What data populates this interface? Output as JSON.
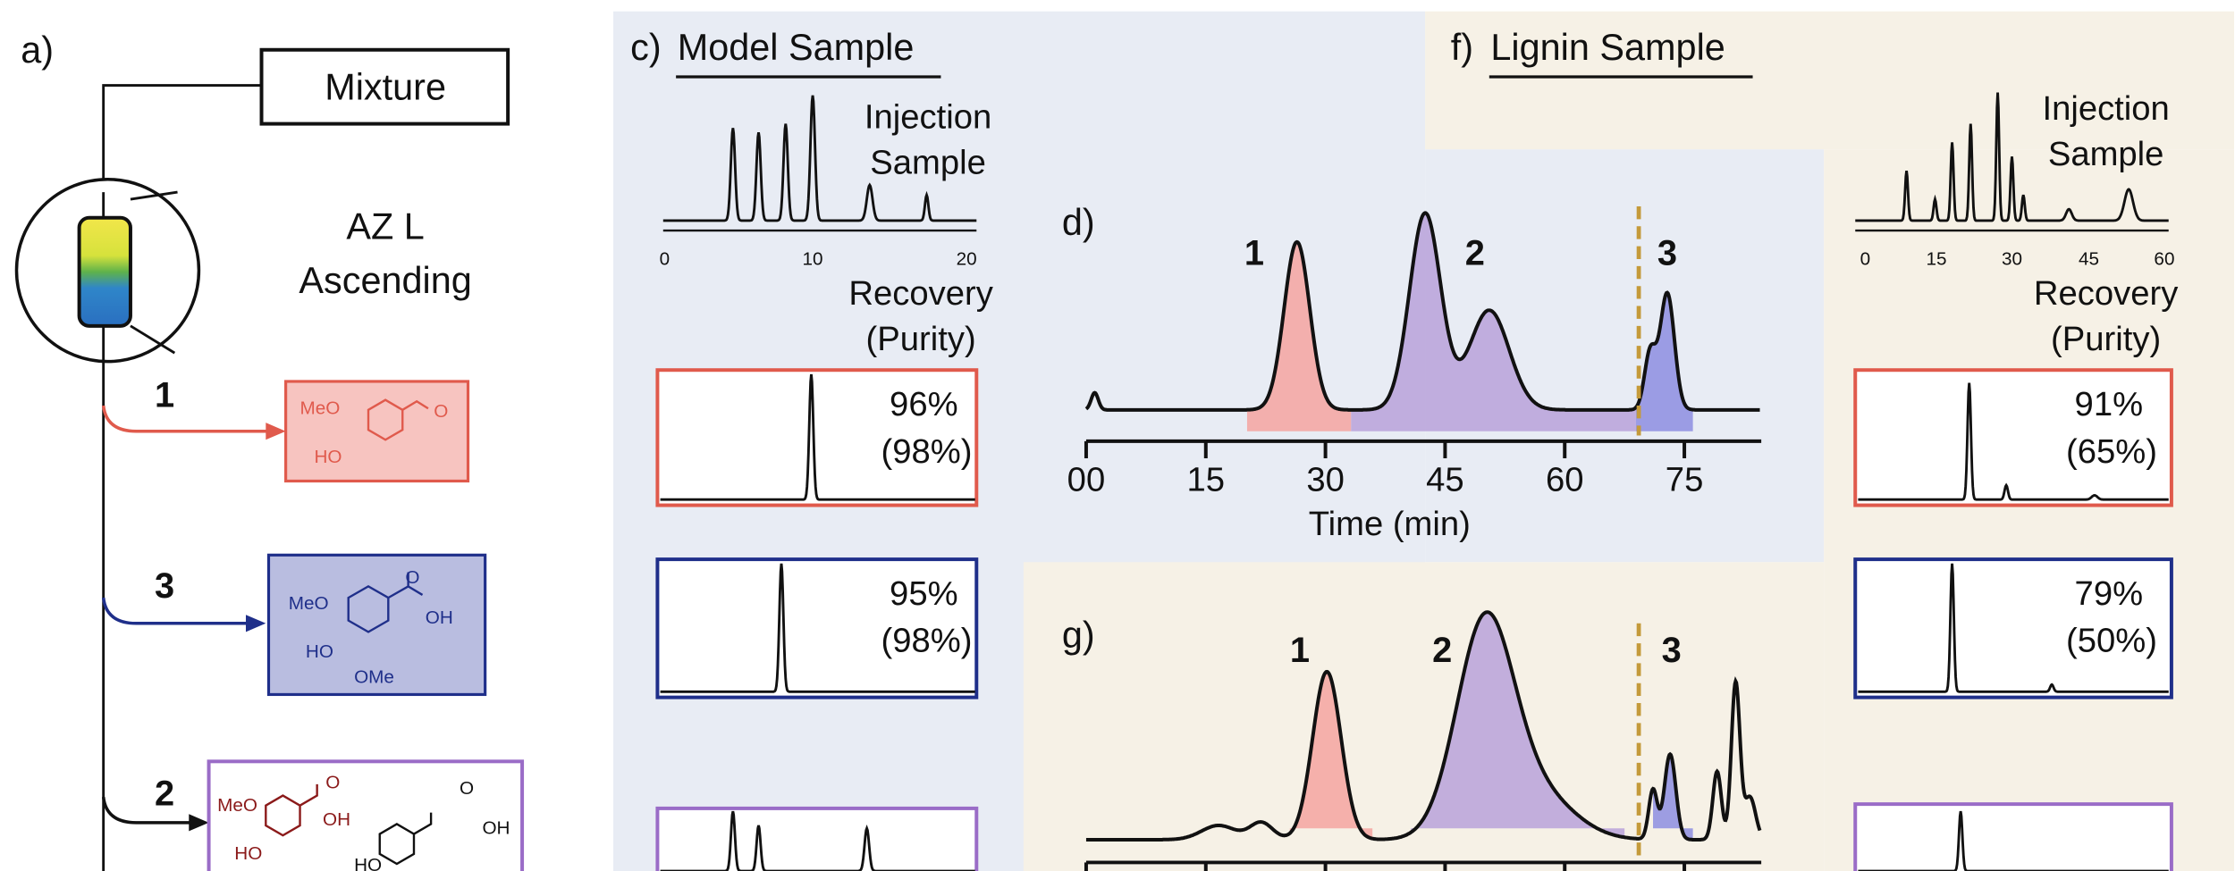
{
  "panel_a": {
    "label": "a)",
    "mixture": "Mixture",
    "column": [
      "AZ L",
      "Ascending"
    ],
    "fractions": [
      "1",
      "3",
      "2"
    ],
    "compound_1": [
      "MeO",
      "HO",
      "O"
    ],
    "compound_3": [
      "MeO",
      "O",
      "OH",
      "HO",
      "OMe"
    ],
    "compound_2": [
      "MeO",
      "O",
      "OH",
      "HO",
      "O",
      "OH",
      "HO"
    ]
  },
  "panel_c": {
    "label": "c)",
    "title": "Model Sample",
    "injection": [
      "Injection",
      "Sample"
    ],
    "ticks": [
      "0",
      "10",
      "20"
    ],
    "recovery": [
      "Recovery",
      "(Purity)"
    ],
    "results": [
      [
        "96%",
        "(98%)"
      ],
      [
        "95%",
        "(98%)"
      ]
    ]
  },
  "panel_d": {
    "label": "d)",
    "peaks": [
      "1",
      "2",
      "3"
    ],
    "ticks": [
      "00",
      "15",
      "30",
      "45",
      "60",
      "75"
    ],
    "xlabel": "Time (min)"
  },
  "panel_f": {
    "label": "f)",
    "title": "Lignin Sample",
    "injection": [
      "Injection",
      "Sample"
    ],
    "ticks": [
      "0",
      "15",
      "30",
      "45",
      "60"
    ],
    "recovery": [
      "Recovery",
      "(Purity)"
    ],
    "results": [
      [
        "91%",
        "(65%)"
      ],
      [
        "79%",
        "(50%)"
      ]
    ]
  },
  "panel_g": {
    "label": "g)",
    "peaks": [
      "1",
      "2",
      "3"
    ]
  }
}
